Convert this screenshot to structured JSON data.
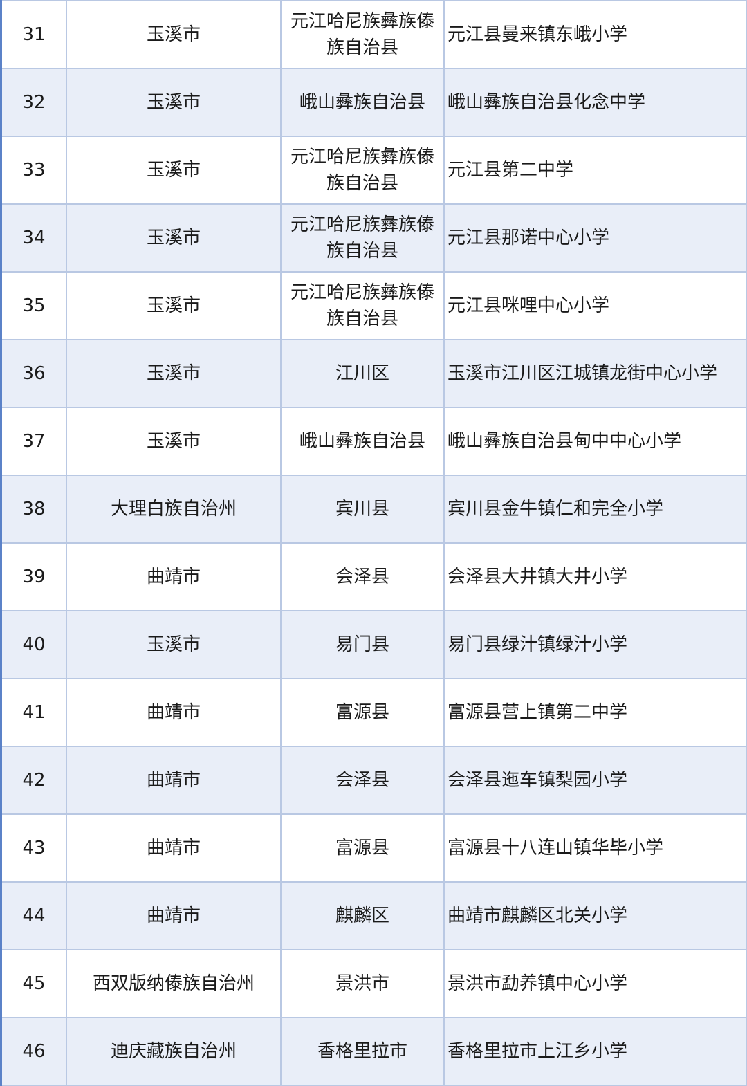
{
  "table": {
    "rows": [
      [
        "31",
        "玉溪市",
        "元江哈尼族彝族傣族自治县",
        "元江县曼来镇东峨小学"
      ],
      [
        "32",
        "玉溪市",
        "峨山彝族自治县",
        "峨山彝族自治县化念中学"
      ],
      [
        "33",
        "玉溪市",
        "元江哈尼族彝族傣族自治县",
        "元江县第二中学"
      ],
      [
        "34",
        "玉溪市",
        "元江哈尼族彝族傣族自治县",
        "元江县那诺中心小学"
      ],
      [
        "35",
        "玉溪市",
        "元江哈尼族彝族傣族自治县",
        "元江县咪哩中心小学"
      ],
      [
        "36",
        "玉溪市",
        "江川区",
        "玉溪市江川区江城镇龙街中心小学"
      ],
      [
        "37",
        "玉溪市",
        "峨山彝族自治县",
        "峨山彝族自治县甸中中心小学"
      ],
      [
        "38",
        "大理白族自治州",
        "宾川县",
        "宾川县金牛镇仁和完全小学"
      ],
      [
        "39",
        "曲靖市",
        "会泽县",
        "会泽县大井镇大井小学"
      ],
      [
        "40",
        "玉溪市",
        "易门县",
        "易门县绿汁镇绿汁小学"
      ],
      [
        "41",
        "曲靖市",
        "富源县",
        "富源县营上镇第二中学"
      ],
      [
        "42",
        "曲靖市",
        "会泽县",
        "会泽县迤车镇梨园小学"
      ],
      [
        "43",
        "曲靖市",
        "富源县",
        "富源县十八连山镇华毕小学"
      ],
      [
        "44",
        "曲靖市",
        "麒麟区",
        "曲靖市麒麟区北关小学"
      ],
      [
        "45",
        "西双版纳傣族自治州",
        "景洪市",
        "景洪市勐养镇中心小学"
      ],
      [
        "46",
        "迪庆藏族自治州",
        "香格里拉市",
        "香格里拉市上江乡小学"
      ]
    ]
  },
  "colors": {
    "row_alt": "#e9eef8",
    "border": "#b9c8e3",
    "left_edge": "#5b82c8"
  }
}
